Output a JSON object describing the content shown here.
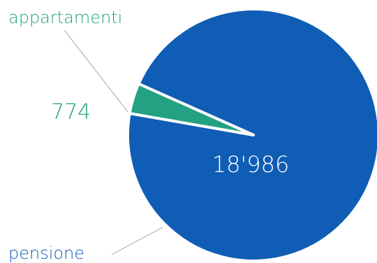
{
  "chart_data": {
    "type": "pie",
    "slices": [
      {
        "label": "pensione",
        "value": 18986,
        "value_label": "18'986",
        "color": "#0f5db5"
      },
      {
        "label": "appartamenti",
        "value": 774,
        "value_label": "774",
        "color": "#23a183"
      }
    ],
    "title": "",
    "legend": "none",
    "label_color_on_slice": "#ffffff",
    "leader_line_color": "#b5b5b5"
  }
}
